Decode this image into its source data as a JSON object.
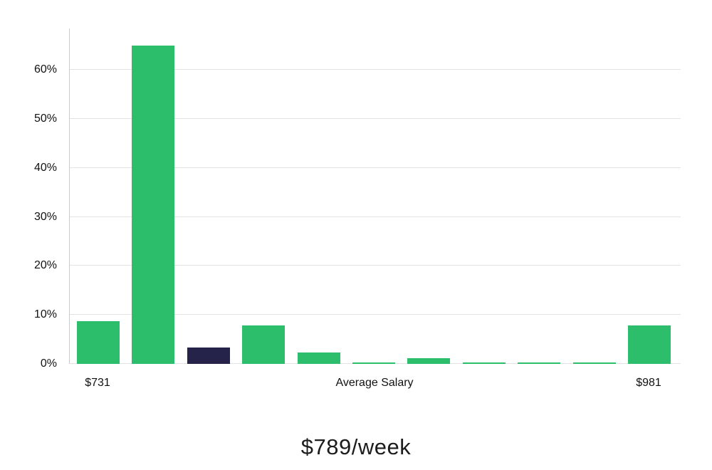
{
  "chart_data": {
    "type": "bar",
    "title": "$789/week",
    "xlabel": "Average Salary",
    "ylabel": "",
    "x_left_label": "$731",
    "x_right_label": "$981",
    "y_ticks": [
      "0%",
      "10%",
      "20%",
      "30%",
      "40%",
      "50%",
      "60%"
    ],
    "y_tick_values": [
      0,
      10,
      20,
      30,
      40,
      50,
      60
    ],
    "ylim": [
      0,
      68.5
    ],
    "values": [
      8.7,
      65,
      3.4,
      7.8,
      2.3,
      0.3,
      1.2,
      0.3,
      0.3,
      0.3,
      7.8
    ],
    "highlight_index": 2,
    "bar_color": "#2dbe6c",
    "highlight_color": "#252349",
    "gridline_color": "#e3e3e3",
    "legend": "none",
    "grid": "horizontal"
  }
}
